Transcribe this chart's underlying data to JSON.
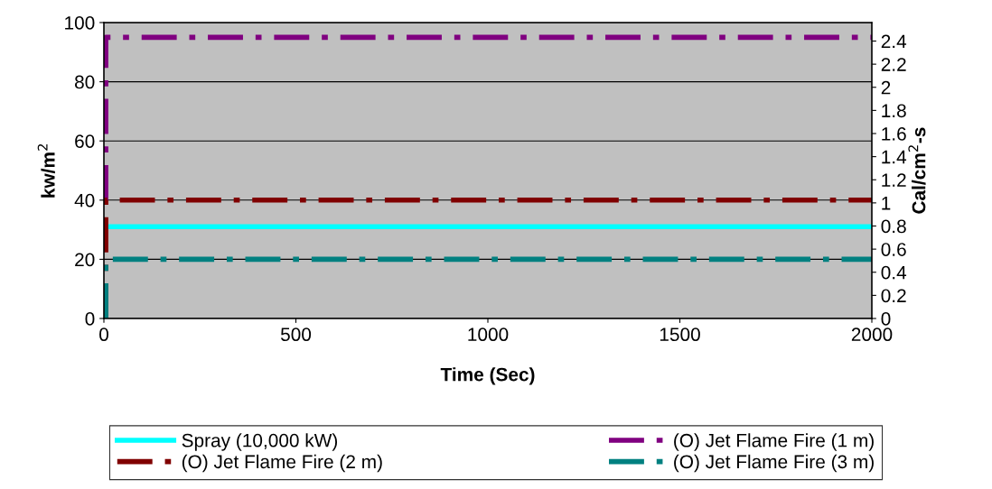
{
  "chart_data": {
    "type": "line",
    "xlabel": "Time (Sec)",
    "ylabel": "kw/m$^{2}$",
    "y2label": "Cal/cm$^{2}$-s",
    "xlim": [
      0,
      2000
    ],
    "xticks": [
      0,
      500,
      1000,
      1500,
      2000
    ],
    "ylim": [
      0,
      100
    ],
    "yticks": [
      0,
      20,
      40,
      60,
      80,
      100
    ],
    "y2lim": [
      0,
      2.56
    ],
    "y2ticks": [
      0,
      0.2,
      0.4,
      0.6,
      0.8,
      1,
      1.2,
      1.4,
      1.6,
      1.8,
      2,
      2.2,
      2.4
    ],
    "grid": "y",
    "legend": "bottom",
    "series": [
      {
        "name": "Spray (10,000 kW)",
        "color": "#00ffff",
        "line_style": "solid",
        "x": [
          0,
          2000
        ],
        "values": [
          31,
          31
        ]
      },
      {
        "name": "(O) Jet Flame Fire (1 m)",
        "color": "#800080",
        "line_style": "dashed",
        "x": [
          5,
          5,
          2000
        ],
        "values": [
          40,
          95,
          95
        ]
      },
      {
        "name": "(O) Jet Flame Fire (2 m)",
        "color": "#800000",
        "line_style": "dashed",
        "x": [
          5,
          5,
          2000
        ],
        "values": [
          0,
          40,
          40
        ]
      },
      {
        "name": "(O) Jet Flame Fire (3 m)",
        "color": "#008080",
        "line_style": "dashed",
        "x": [
          5,
          5,
          2000
        ],
        "values": [
          0,
          20,
          20
        ]
      }
    ]
  }
}
